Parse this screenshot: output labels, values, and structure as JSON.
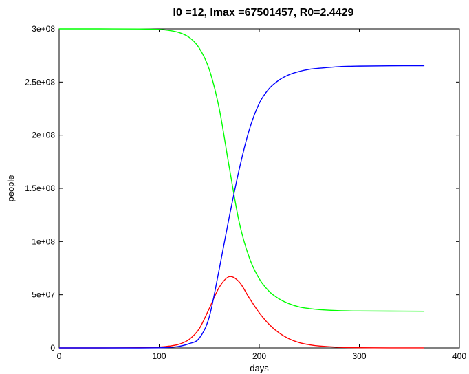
{
  "chart_data": {
    "type": "line",
    "title": "I0 =12, Imax =67501457, R0=2.4429",
    "xlabel": "days",
    "ylabel": "people",
    "xlim": [
      0,
      400
    ],
    "ylim": [
      0,
      300000000
    ],
    "xticks": [
      0,
      100,
      200,
      300,
      400
    ],
    "xtick_labels": [
      "0",
      "100",
      "200",
      "300",
      "400"
    ],
    "yticks": [
      0,
      50000000,
      100000000,
      150000000,
      200000000,
      250000000,
      300000000
    ],
    "ytick_labels": [
      "0",
      "5e+07",
      "1e+08",
      "1.5e+08",
      "2e+08",
      "2.5e+08",
      "3e+08"
    ],
    "grid": false,
    "legend": "none",
    "x": [
      0,
      40,
      80,
      100,
      110,
      120,
      130,
      140,
      150,
      160,
      170,
      180,
      190,
      200,
      210,
      220,
      230,
      240,
      250,
      260,
      280,
      300,
      330,
      365
    ],
    "series": [
      {
        "color": "#00ff00",
        "values": [
          300000000,
          300000000,
          299900000,
          299500000,
          298500000,
          296500000,
          292000000,
          282000000,
          262000000,
          225000000,
          170000000,
          118000000,
          85000000,
          65000000,
          53000000,
          46000000,
          41500000,
          38500000,
          37000000,
          36000000,
          35000000,
          34700000,
          34600000,
          34500000
        ]
      },
      {
        "color": "#ff0000",
        "values": [
          0,
          0,
          200000,
          800000,
          1700000,
          3500000,
          8000000,
          18000000,
          37000000,
          57000000,
          67000000,
          62000000,
          47000000,
          33000000,
          22000000,
          14000000,
          8500000,
          5000000,
          3000000,
          1800000,
          600000,
          200000,
          50000,
          10000
        ]
      },
      {
        "color": "#0000ff",
        "values": [
          0,
          0,
          0,
          100000,
          500000,
          1500000,
          4000000,
          9000000,
          29000000,
          74000000,
          123000000,
          168000000,
          205000000,
          230000000,
          244000000,
          252000000,
          257000000,
          260000000,
          262000000,
          263000000,
          264500000,
          265000000,
          265300000,
          265400000
        ]
      }
    ]
  }
}
